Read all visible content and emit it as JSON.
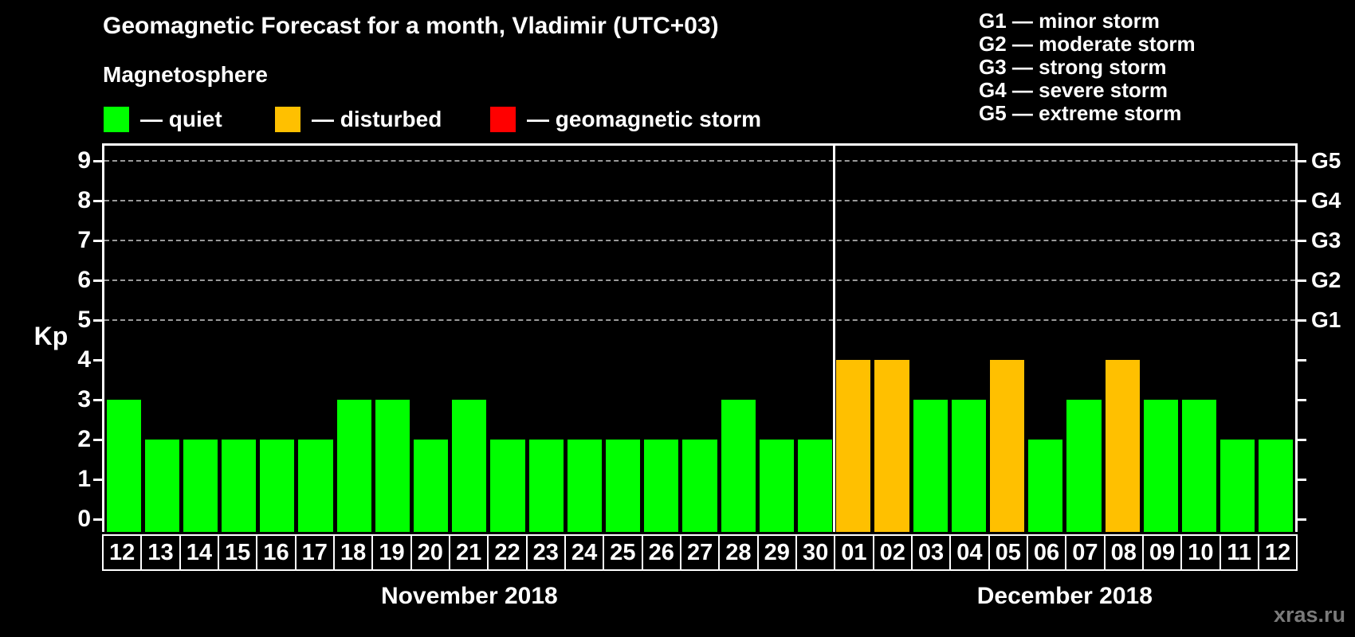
{
  "header": {
    "title": "Geomagnetic Forecast for a month, Vladimir (UTC+03)"
  },
  "legend": {
    "title": "Magnetosphere",
    "items": [
      {
        "key": "quiet",
        "label": "— quiet"
      },
      {
        "key": "disturbed",
        "label": "— disturbed"
      },
      {
        "key": "storm",
        "label": "— geomagnetic storm"
      }
    ]
  },
  "g_scale": {
    "items": [
      {
        "text": "G1 — minor storm"
      },
      {
        "text": "G2 — moderate storm"
      },
      {
        "text": "G3 — strong storm"
      },
      {
        "text": "G4 — severe storm"
      },
      {
        "text": "G5 — extreme storm"
      }
    ]
  },
  "axis": {
    "ylabel": "Kp",
    "yticks": [
      0,
      1,
      2,
      3,
      4,
      5,
      6,
      7,
      8,
      9
    ],
    "right_labels": [
      {
        "kp": 5,
        "label": "G1"
      },
      {
        "kp": 6,
        "label": "G2"
      },
      {
        "kp": 7,
        "label": "G3"
      },
      {
        "kp": 8,
        "label": "G4"
      },
      {
        "kp": 9,
        "label": "G5"
      }
    ]
  },
  "watermark": "xras.ru",
  "chart_data": {
    "type": "bar",
    "title": "Geomagnetic Forecast for a month, Vladimir (UTC+03)",
    "xlabel": "",
    "ylabel": "Kp",
    "ylim": [
      0,
      9.4
    ],
    "grid": "dashed horizontal lines at Kp 5-9",
    "legend_position": "top",
    "colors": {
      "quiet": "#00FF00",
      "disturbed": "#FFC000",
      "storm": "#FF0000",
      "background": "#000000",
      "text": "#FFFFFF",
      "gridline": "#9A9A9A",
      "watermark": "#7A7A7A"
    },
    "color_rules": {
      "quiet_kp_max": 3,
      "disturbed_kp_max": 4,
      "storm_kp_min": 5
    },
    "months": [
      {
        "label": "November 2018",
        "days": [
          {
            "day": "12",
            "kp": 3
          },
          {
            "day": "13",
            "kp": 2
          },
          {
            "day": "14",
            "kp": 2
          },
          {
            "day": "15",
            "kp": 2
          },
          {
            "day": "16",
            "kp": 2
          },
          {
            "day": "17",
            "kp": 2
          },
          {
            "day": "18",
            "kp": 3
          },
          {
            "day": "19",
            "kp": 3
          },
          {
            "day": "20",
            "kp": 2
          },
          {
            "day": "21",
            "kp": 3
          },
          {
            "day": "22",
            "kp": 2
          },
          {
            "day": "23",
            "kp": 2
          },
          {
            "day": "24",
            "kp": 2
          },
          {
            "day": "25",
            "kp": 2
          },
          {
            "day": "26",
            "kp": 2
          },
          {
            "day": "27",
            "kp": 2
          },
          {
            "day": "28",
            "kp": 3
          },
          {
            "day": "29",
            "kp": 2
          },
          {
            "day": "30",
            "kp": 2
          }
        ]
      },
      {
        "label": "December 2018",
        "days": [
          {
            "day": "01",
            "kp": 4
          },
          {
            "day": "02",
            "kp": 4
          },
          {
            "day": "03",
            "kp": 3
          },
          {
            "day": "04",
            "kp": 3
          },
          {
            "day": "05",
            "kp": 4
          },
          {
            "day": "06",
            "kp": 2
          },
          {
            "day": "07",
            "kp": 3
          },
          {
            "day": "08",
            "kp": 4
          },
          {
            "day": "09",
            "kp": 3
          },
          {
            "day": "10",
            "kp": 3
          },
          {
            "day": "11",
            "kp": 2
          },
          {
            "day": "12",
            "kp": 2
          }
        ]
      }
    ]
  }
}
